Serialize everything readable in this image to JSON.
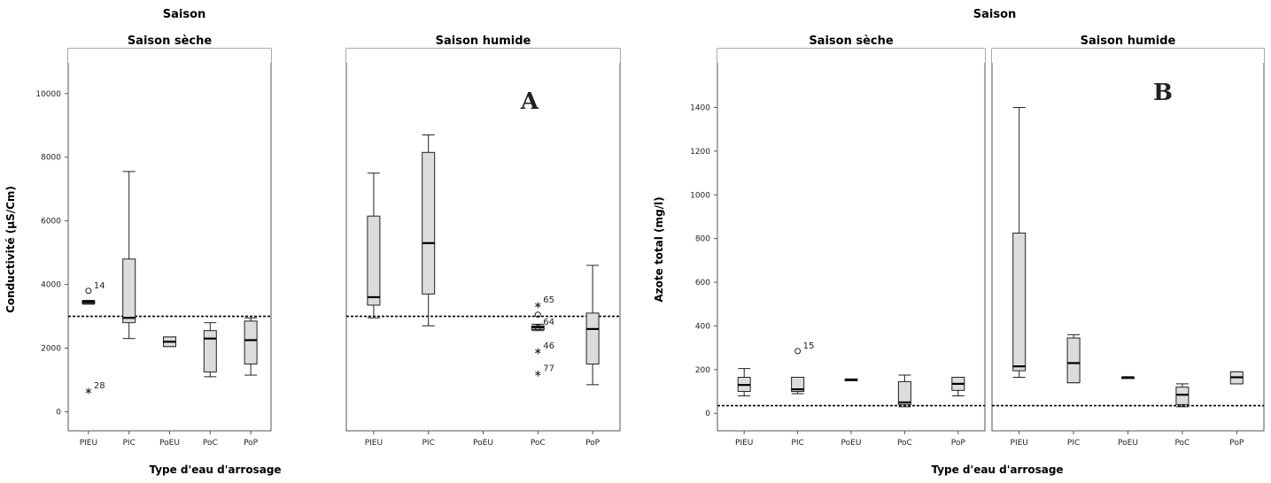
{
  "chart_data": [
    {
      "type": "boxplot",
      "title": "Saison",
      "panel_letter": "A",
      "xlabel": "Type d'eau d'arrosage",
      "ylabel": "Conductivité (µS/Cm)",
      "ylim": [
        -600,
        10800
      ],
      "yticks": [
        "0",
        "2000",
        "4000",
        "6000",
        "8000",
        "10000"
      ],
      "categories": [
        "PIEU",
        "PIC",
        "PoEU",
        "PoC",
        "PoP"
      ],
      "reference_line": 3000,
      "panels": [
        {
          "name": "Saison sèche",
          "boxes": [
            {
              "category": "PIEU",
              "min": 3380,
              "q1": 3400,
              "median": 3450,
              "q3": 3480,
              "max": 3500
            },
            {
              "category": "PIC",
              "min": 2300,
              "q1": 2800,
              "median": 2950,
              "q3": 4800,
              "max": 7550
            },
            {
              "category": "PoEU",
              "min": 2050,
              "q1": 2050,
              "median": 2200,
              "q3": 2350,
              "max": 2350
            },
            {
              "category": "PoC",
              "min": 1100,
              "q1": 1250,
              "median": 2300,
              "q3": 2550,
              "max": 2800
            },
            {
              "category": "PoP",
              "min": 1150,
              "q1": 1500,
              "median": 2250,
              "q3": 2850,
              "max": 2950
            }
          ],
          "outliers": [
            {
              "category": "PIEU",
              "value": 3800,
              "marker": "circle",
              "label": "14"
            },
            {
              "category": "PIEU",
              "value": 650,
              "marker": "star",
              "label": "28"
            }
          ]
        },
        {
          "name": "Saison humide",
          "boxes": [
            {
              "category": "PIEU",
              "min": 2950,
              "q1": 3350,
              "median": 3600,
              "q3": 6150,
              "max": 7500
            },
            {
              "category": "PIC",
              "min": 2700,
              "q1": 3700,
              "median": 5300,
              "q3": 8150,
              "max": 8700
            },
            {
              "category": "PoC",
              "min": 2550,
              "q1": 2580,
              "median": 2650,
              "q3": 2700,
              "max": 2750
            },
            {
              "category": "PoP",
              "min": 850,
              "q1": 1500,
              "median": 2600,
              "q3": 3100,
              "max": 4600
            }
          ],
          "outliers": [
            {
              "category": "PoC",
              "value": 3350,
              "marker": "star",
              "label": "65"
            },
            {
              "category": "PoC",
              "value": 3050,
              "marker": "circle",
              "label": ""
            },
            {
              "category": "PoC",
              "value": 2650,
              "marker": "circle",
              "label": "64"
            },
            {
              "category": "PoC",
              "value": 1900,
              "marker": "star",
              "label": "46"
            },
            {
              "category": "PoC",
              "value": 1200,
              "marker": "star",
              "label": "77"
            }
          ]
        }
      ]
    },
    {
      "type": "boxplot",
      "title": "Saison",
      "panel_letter": "B",
      "xlabel": "Type d'eau d'arrosage",
      "ylabel": "Azote total (mg/l)",
      "ylim": [
        -80,
        1580
      ],
      "yticks": [
        "0",
        "200",
        "400",
        "600",
        "800",
        "1000",
        "1200",
        "1400"
      ],
      "categories": [
        "PIEU",
        "PIC",
        "PoEU",
        "PoC",
        "PoP"
      ],
      "reference_line": 35,
      "panels": [
        {
          "name": "Saison sèche",
          "boxes": [
            {
              "category": "PIEU",
              "min": 80,
              "q1": 100,
              "median": 130,
              "q3": 165,
              "max": 205
            },
            {
              "category": "PIC",
              "min": 90,
              "q1": 100,
              "median": 110,
              "q3": 165,
              "max": 165
            },
            {
              "category": "PoEU",
              "min": 155,
              "q1": 155,
              "median": 155,
              "q3": 155,
              "max": 155
            },
            {
              "category": "PoC",
              "min": 30,
              "q1": 40,
              "median": 50,
              "q3": 145,
              "max": 175
            },
            {
              "category": "PoP",
              "min": 80,
              "q1": 105,
              "median": 135,
              "q3": 165,
              "max": 165
            }
          ],
          "outliers": [
            {
              "category": "PIC",
              "value": 285,
              "marker": "circle",
              "label": "15"
            }
          ]
        },
        {
          "name": "Saison humide",
          "boxes": [
            {
              "category": "PIEU",
              "min": 165,
              "q1": 195,
              "median": 215,
              "q3": 825,
              "max": 1400
            },
            {
              "category": "PIC",
              "min": 140,
              "q1": 140,
              "median": 230,
              "q3": 345,
              "max": 360
            },
            {
              "category": "PoEU",
              "min": 165,
              "q1": 165,
              "median": 165,
              "q3": 165,
              "max": 165
            },
            {
              "category": "PoC",
              "min": 30,
              "q1": 40,
              "median": 85,
              "q3": 120,
              "max": 135
            },
            {
              "category": "PoP",
              "min": 135,
              "q1": 135,
              "median": 165,
              "q3": 190,
              "max": 190
            }
          ],
          "outliers": []
        }
      ]
    }
  ]
}
